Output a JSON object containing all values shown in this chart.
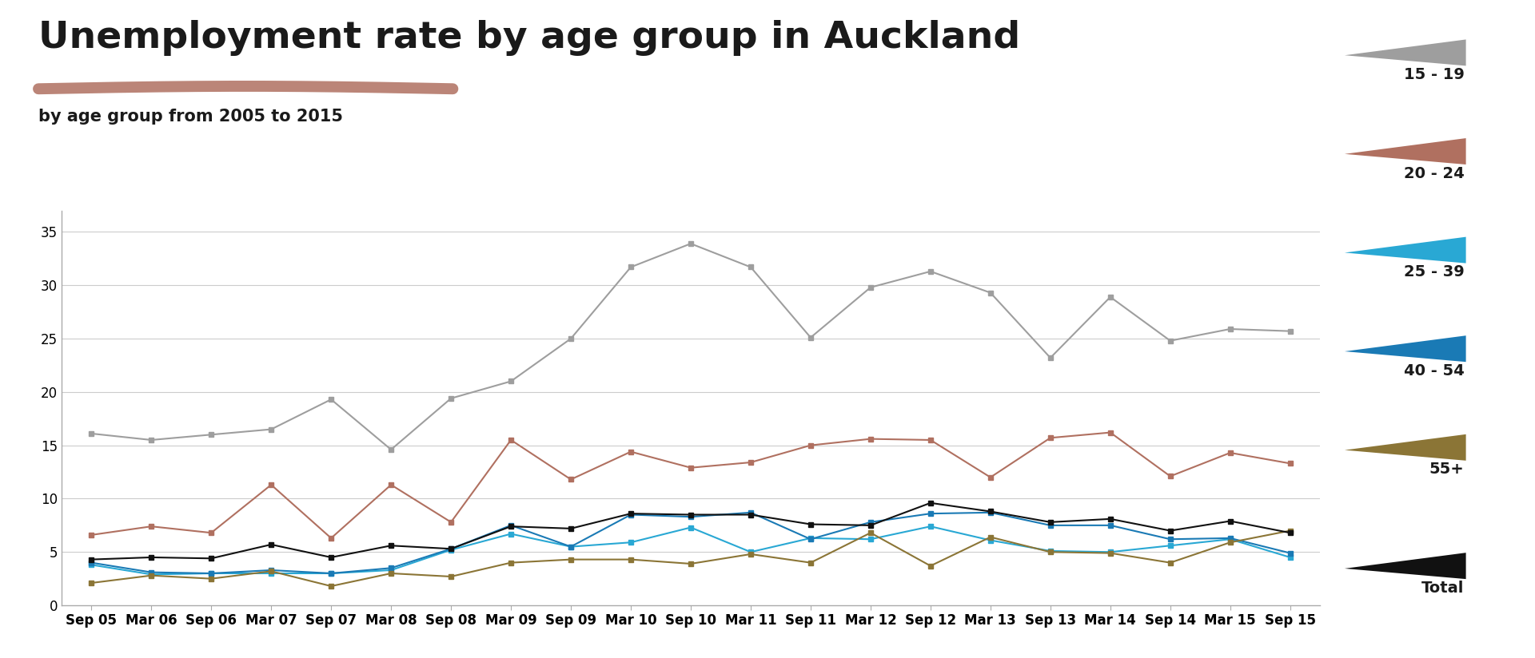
{
  "title": "Unemployment rate by age group in Auckland",
  "subtitle": "by age group from 2005 to 2015",
  "title_color": "#1a1a1a",
  "subtitle_color": "#1a1a1a",
  "underline_color": "#b07060",
  "background_color": "#ffffff",
  "ylim": [
    0,
    37
  ],
  "yticks": [
    0,
    5,
    10,
    15,
    20,
    25,
    30,
    35
  ],
  "x_labels": [
    "Sep 05",
    "Mar 06",
    "Sep 06",
    "Mar 07",
    "Sep 07",
    "Mar 08",
    "Sep 08",
    "Mar 09",
    "Sep 09",
    "Mar 10",
    "Sep 10",
    "Mar 11",
    "Sep 11",
    "Mar 12",
    "Sep 12",
    "Mar 13",
    "Sep 13",
    "Mar 14",
    "Sep 14",
    "Mar 15",
    "Sep 15"
  ],
  "series": {
    "15 - 19": {
      "color": "#9e9e9e",
      "marker": "s",
      "linewidth": 1.5,
      "markersize": 4,
      "values": [
        16.1,
        15.5,
        16.0,
        16.5,
        19.3,
        14.6,
        19.4,
        21.0,
        25.0,
        31.7,
        33.9,
        31.7,
        25.1,
        29.8,
        31.3,
        29.3,
        23.2,
        28.9,
        24.8,
        25.9,
        25.7
      ]
    },
    "20 - 24": {
      "color": "#b07060",
      "marker": "s",
      "linewidth": 1.5,
      "markersize": 4,
      "values": [
        6.6,
        7.4,
        6.8,
        11.3,
        6.3,
        11.3,
        7.8,
        15.5,
        11.8,
        14.4,
        12.9,
        13.4,
        15.0,
        15.6,
        15.5,
        12.0,
        15.7,
        16.2,
        12.1,
        14.3,
        13.3
      ]
    },
    "25 - 39": {
      "color": "#29a8d4",
      "marker": "s",
      "linewidth": 1.5,
      "markersize": 4,
      "values": [
        3.8,
        2.9,
        3.0,
        3.0,
        3.0,
        3.3,
        5.2,
        6.7,
        5.5,
        5.9,
        7.3,
        5.0,
        6.3,
        6.2,
        7.4,
        6.1,
        5.1,
        5.0,
        5.6,
        6.2,
        4.5
      ]
    },
    "40 - 54": {
      "color": "#1a7ab5",
      "marker": "s",
      "linewidth": 1.5,
      "markersize": 4,
      "values": [
        4.0,
        3.1,
        3.0,
        3.3,
        3.0,
        3.5,
        5.3,
        7.5,
        5.5,
        8.5,
        8.3,
        8.7,
        6.2,
        7.8,
        8.6,
        8.7,
        7.5,
        7.5,
        6.2,
        6.3,
        4.9
      ]
    },
    "55+": {
      "color": "#8b7536",
      "marker": "s",
      "linewidth": 1.5,
      "markersize": 4,
      "values": [
        2.1,
        2.8,
        2.5,
        3.2,
        1.8,
        3.0,
        2.7,
        4.0,
        4.3,
        4.3,
        3.9,
        4.8,
        4.0,
        6.8,
        3.7,
        6.4,
        5.0,
        4.9,
        4.0,
        5.9,
        7.0
      ]
    },
    "Total": {
      "color": "#111111",
      "marker": "s",
      "linewidth": 1.5,
      "markersize": 4,
      "values": [
        4.3,
        4.5,
        4.4,
        5.7,
        4.5,
        5.6,
        5.3,
        7.4,
        7.2,
        8.6,
        8.5,
        8.5,
        7.6,
        7.5,
        9.6,
        8.8,
        7.8,
        8.1,
        7.0,
        7.9,
        6.8
      ]
    }
  },
  "legend_order": [
    "15 - 19",
    "20 - 24",
    "25 - 39",
    "40 - 54",
    "55+",
    "Total"
  ],
  "legend_colors": {
    "15 - 19": "#9e9e9e",
    "20 - 24": "#b07060",
    "25 - 39": "#29a8d4",
    "40 - 54": "#1a7ab5",
    "55+": "#8b7536",
    "Total": "#111111"
  }
}
